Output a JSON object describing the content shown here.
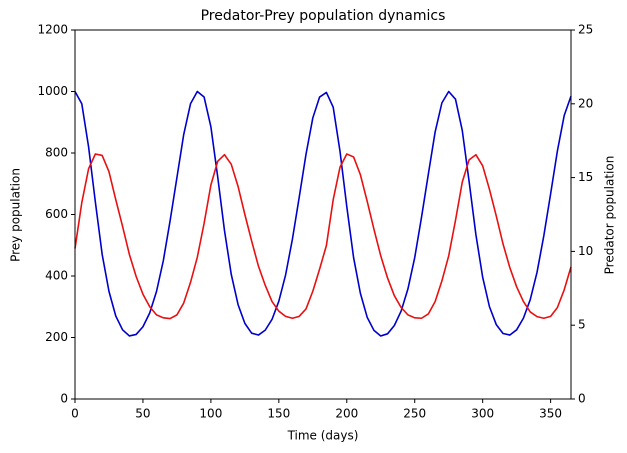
{
  "chart_data": {
    "type": "line",
    "title": "Predator-Prey population dynamics",
    "xlabel": "Time (days)",
    "ylabel": "Prey population",
    "y2label": "Predator population",
    "x": [
      0,
      5,
      10,
      15,
      20,
      25,
      30,
      35,
      40,
      45,
      50,
      55,
      60,
      65,
      70,
      75,
      80,
      85,
      90,
      95,
      100,
      105,
      110,
      115,
      120,
      125,
      130,
      135,
      140,
      145,
      150,
      155,
      160,
      165,
      170,
      175,
      180,
      185,
      190,
      195,
      200,
      205,
      210,
      215,
      220,
      225,
      230,
      235,
      240,
      245,
      250,
      255,
      260,
      265,
      270,
      275,
      280,
      285,
      290,
      295,
      300,
      305,
      310,
      315,
      320,
      325,
      330,
      335,
      340,
      345,
      350,
      355,
      360,
      365
    ],
    "series": [
      {
        "color": "#0000cd",
        "values": [
          1000,
          960,
          820,
          640,
          470,
          350,
          270,
          225,
          205,
          210,
          235,
          280,
          350,
          450,
          580,
          720,
          860,
          960,
          1000,
          982,
          885,
          723,
          548,
          405,
          307,
          246,
          214,
          208,
          224,
          259,
          318,
          404,
          520,
          656,
          796,
          914,
          982,
          997,
          949,
          806,
          626,
          460,
          344,
          266,
          223,
          205,
          212,
          239,
          286,
          358,
          460,
          591,
          731,
          868,
          963,
          1000,
          975,
          873,
          708,
          535,
          396,
          300,
          242,
          213,
          208,
          225,
          263,
          323,
          412,
          531,
          667,
          807,
          922,
          985
        ]
      },
      {
        "color": "#e81010",
        "axis": "y2",
        "values": [
          10.2,
          13.3,
          15.6,
          16.6,
          16.5,
          15.4,
          13.5,
          11.7,
          9.8,
          8.3,
          7.1,
          6.25,
          5.7,
          5.5,
          5.45,
          5.7,
          6.5,
          7.9,
          9.6,
          11.9,
          14.5,
          16.1,
          16.55,
          15.9,
          14.4,
          12.5,
          10.7,
          9.0,
          7.7,
          6.6,
          5.95,
          5.6,
          5.47,
          5.6,
          6.1,
          7.3,
          8.8,
          10.4,
          13.5,
          15.7,
          16.6,
          16.4,
          15.2,
          13.4,
          11.5,
          9.7,
          8.2,
          7.0,
          6.2,
          5.7,
          5.5,
          5.47,
          5.76,
          6.6,
          8.0,
          9.7,
          12.1,
          14.7,
          16.2,
          16.55,
          15.8,
          14.2,
          12.4,
          10.5,
          8.9,
          7.6,
          6.6,
          5.9,
          5.58,
          5.47,
          5.6,
          6.2,
          7.4,
          8.95
        ]
      }
    ],
    "xlim": [
      0,
      365
    ],
    "xticks": [
      0,
      50,
      100,
      150,
      200,
      250,
      300,
      350
    ],
    "ylim": [
      0,
      1200
    ],
    "yticks": [
      0,
      200,
      400,
      600,
      800,
      1000,
      1200
    ],
    "y2lim": [
      0,
      25
    ],
    "y2ticks": [
      0,
      5,
      10,
      15,
      20,
      25
    ],
    "grid": false
  }
}
